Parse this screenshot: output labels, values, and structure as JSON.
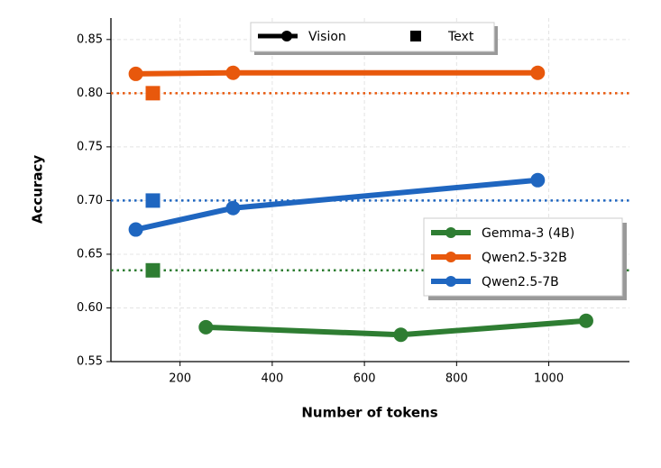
{
  "chart_data": {
    "type": "line",
    "xlabel": "Number of tokens",
    "ylabel": "Accuracy",
    "xlim": [
      50,
      1175
    ],
    "ylim": [
      0.55,
      0.87
    ],
    "xticks": [
      200,
      400,
      600,
      800,
      1000
    ],
    "yticks": [
      {
        "value": 0.55,
        "label": "0.55"
      },
      {
        "value": 0.6,
        "label": "0.60"
      },
      {
        "value": 0.65,
        "label": "0.65"
      },
      {
        "value": 0.7,
        "label": "0.70"
      },
      {
        "value": 0.75,
        "label": "0.75"
      },
      {
        "value": 0.8,
        "label": "0.80"
      },
      {
        "value": 0.85,
        "label": "0.85"
      }
    ],
    "grid": true,
    "style_legend": [
      "Vision",
      "Text"
    ],
    "text_x": 141,
    "series": [
      {
        "name": "Gemma-3 (4B)",
        "color": "#2e7d32",
        "x": [
          256,
          679,
          1081
        ],
        "values": [
          0.582,
          0.575,
          0.588
        ],
        "text_value": 0.635
      },
      {
        "name": "Qwen2.5-32B",
        "color": "#e8580c",
        "x": [
          104,
          315,
          976
        ],
        "values": [
          0.818,
          0.819,
          0.819
        ],
        "text_value": 0.8
      },
      {
        "name": "Qwen2.5-7B",
        "color": "#1f66c0",
        "x": [
          104,
          315,
          976
        ],
        "values": [
          0.673,
          0.693,
          0.719
        ],
        "text_value": 0.7
      }
    ]
  }
}
